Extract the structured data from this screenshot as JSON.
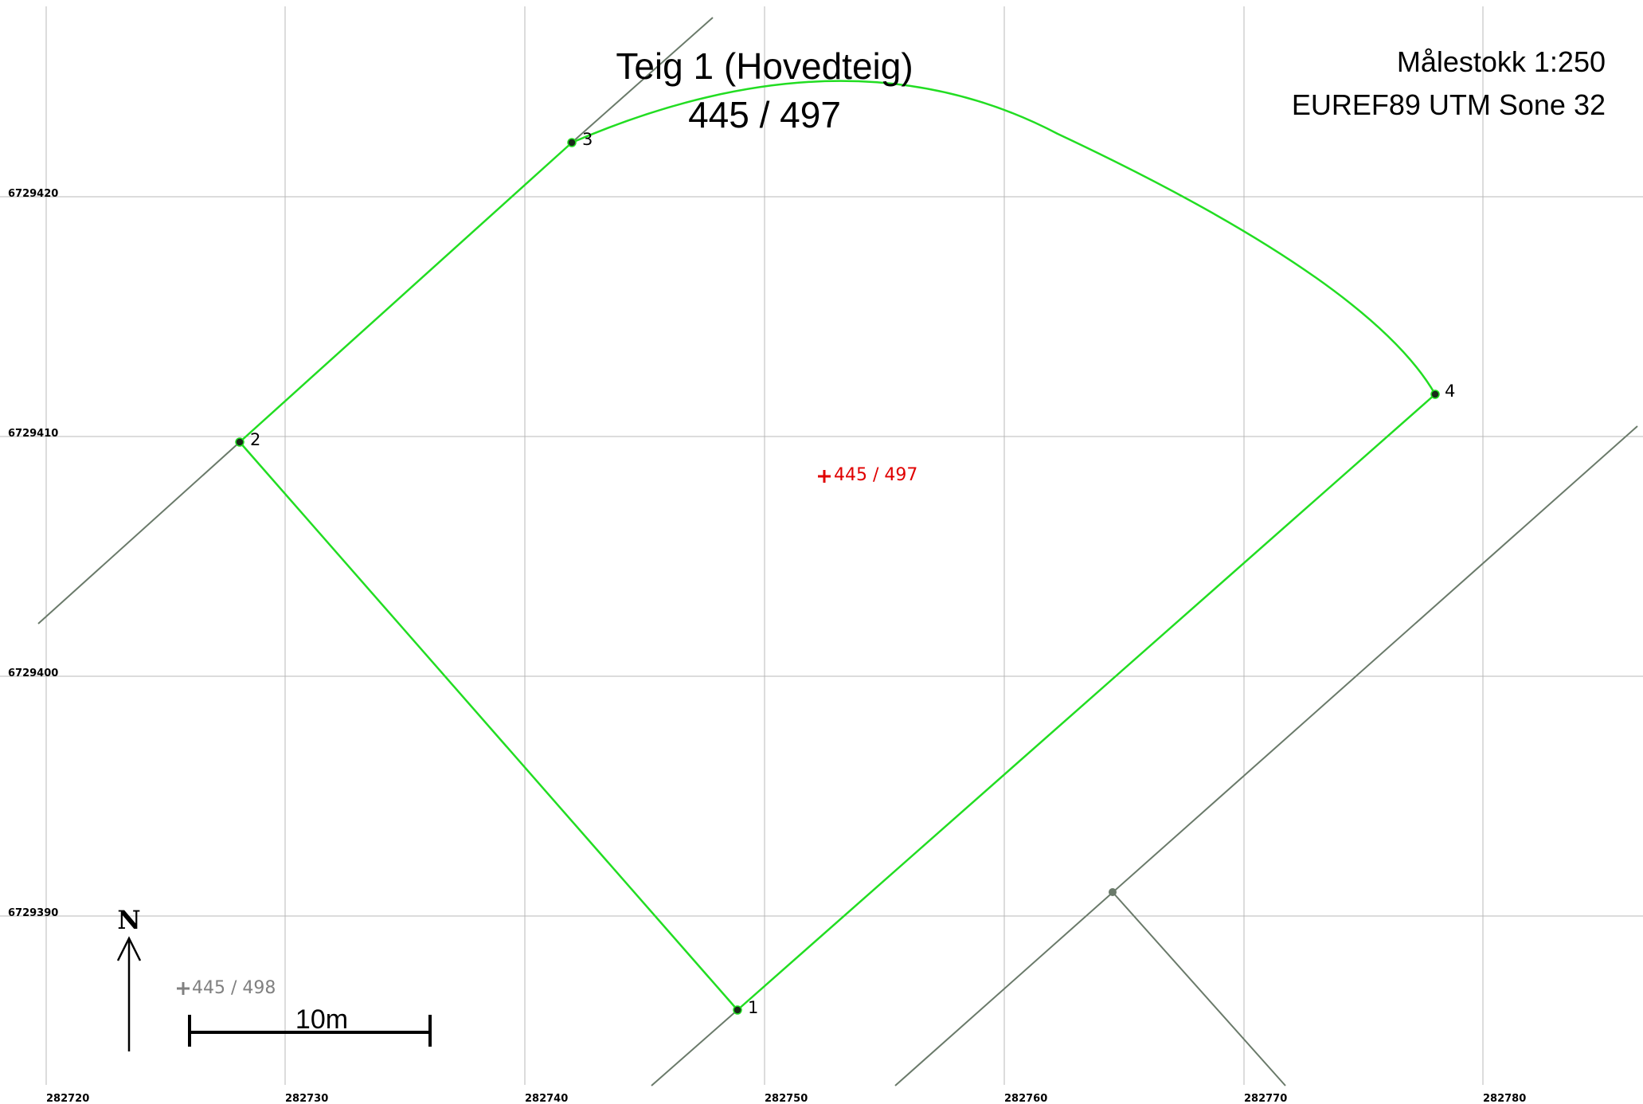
{
  "title": {
    "line1": "Teig 1 (Hovedteig)",
    "line2": "445 / 497"
  },
  "scale": {
    "text": "Målestokk 1:250",
    "crs": "EUREF89 UTM Sone 32"
  },
  "grid": {
    "x_ticks": [
      "282720",
      "282730",
      "282740",
      "282750",
      "282760",
      "282770",
      "282780"
    ],
    "y_ticks": [
      "6729420",
      "6729410",
      "6729400",
      "6729390"
    ]
  },
  "boundary_points": [
    {
      "id": "1",
      "label": "1"
    },
    {
      "id": "2",
      "label": "2"
    },
    {
      "id": "3",
      "label": "3"
    },
    {
      "id": "4",
      "label": "4"
    }
  ],
  "parcels": {
    "main": {
      "label": "445 / 497",
      "color": "#e00000"
    },
    "neighbor": {
      "label": "445 / 498",
      "color": "#808080"
    }
  },
  "north_arrow": {
    "label": "N"
  },
  "scale_bar": {
    "label": "10m"
  },
  "colors": {
    "boundary": "#22dd22",
    "neighbor_lines": "#6a7a6a",
    "grid": "#b8b8b8"
  }
}
